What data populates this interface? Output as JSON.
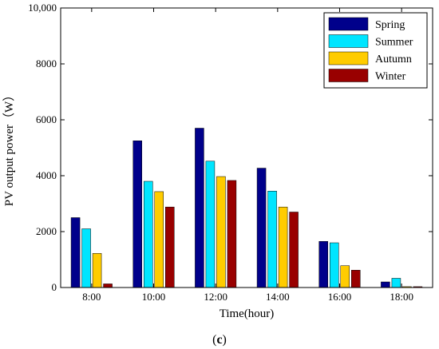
{
  "chart_data": {
    "type": "bar",
    "xlabel": "Time(hour)",
    "ylabel": "PV output power（W）",
    "ylim": [
      0,
      10000
    ],
    "yticks": [
      "0",
      "2000",
      "4000",
      "6000",
      "8000",
      "10,000"
    ],
    "ytick_values": [
      0,
      2000,
      4000,
      6000,
      8000,
      10000
    ],
    "categories": [
      "8:00",
      "10:00",
      "12:00",
      "14:00",
      "16:00",
      "18:00"
    ],
    "series": [
      {
        "name": "Spring",
        "color": "#00008b",
        "values": [
          2500,
          5250,
          5700,
          4270,
          1650,
          200
        ]
      },
      {
        "name": "Summer",
        "color": "#00e5ff",
        "values": [
          2100,
          3800,
          4520,
          3450,
          1600,
          330
        ]
      },
      {
        "name": "Autumn",
        "color": "#ffcc00",
        "values": [
          1220,
          3430,
          3970,
          2880,
          780,
          30
        ]
      },
      {
        "name": "Winter",
        "color": "#990000",
        "values": [
          130,
          2880,
          3830,
          2700,
          620,
          30
        ]
      }
    ],
    "legend": "top-right",
    "grid": false
  },
  "caption": {
    "prefix": "(",
    "letter": "c",
    "suffix": ")"
  }
}
